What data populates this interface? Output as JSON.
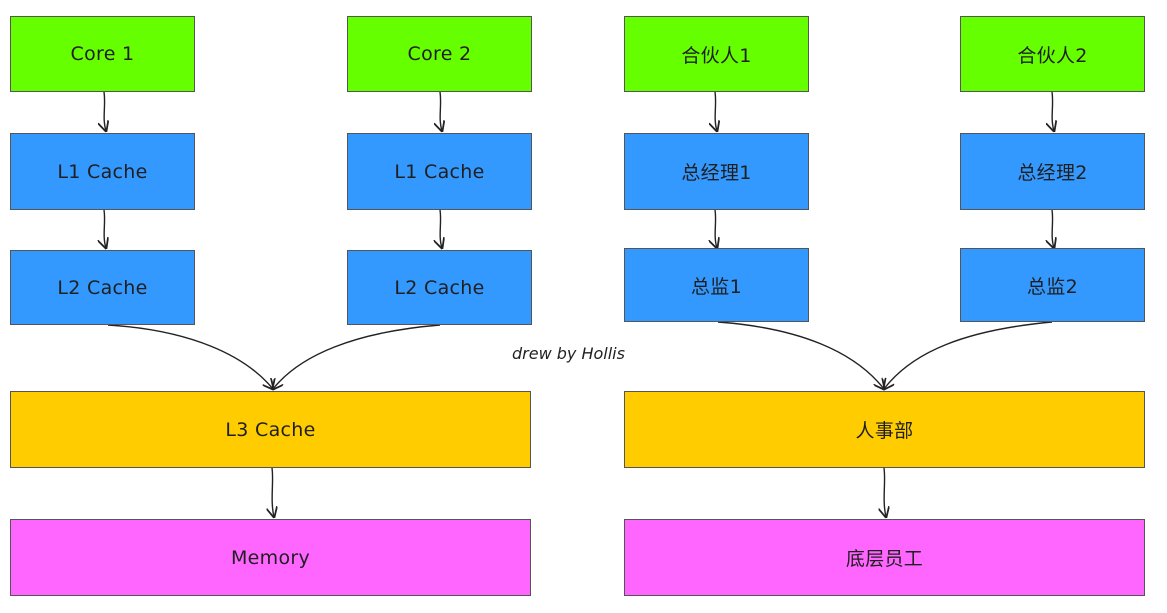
{
  "colors": {
    "core": "#66ff00",
    "cache": "#3399ff",
    "shared": "#ffcc00",
    "memory": "#ff66ff",
    "border": "#555555"
  },
  "left": {
    "core1": "Core 1",
    "core2": "Core 2",
    "l1_cache": "L1 Cache",
    "l2_cache": "L2 Cache",
    "l3_cache": "L3 Cache",
    "memory": "Memory"
  },
  "right": {
    "partner1": "合伙人1",
    "partner2": "合伙人2",
    "gm1": "总经理1",
    "gm2": "总经理2",
    "director1": "总监1",
    "director2": "总监2",
    "hr": "人事部",
    "staff": "底层员工"
  },
  "credit": "drew by Hollis"
}
